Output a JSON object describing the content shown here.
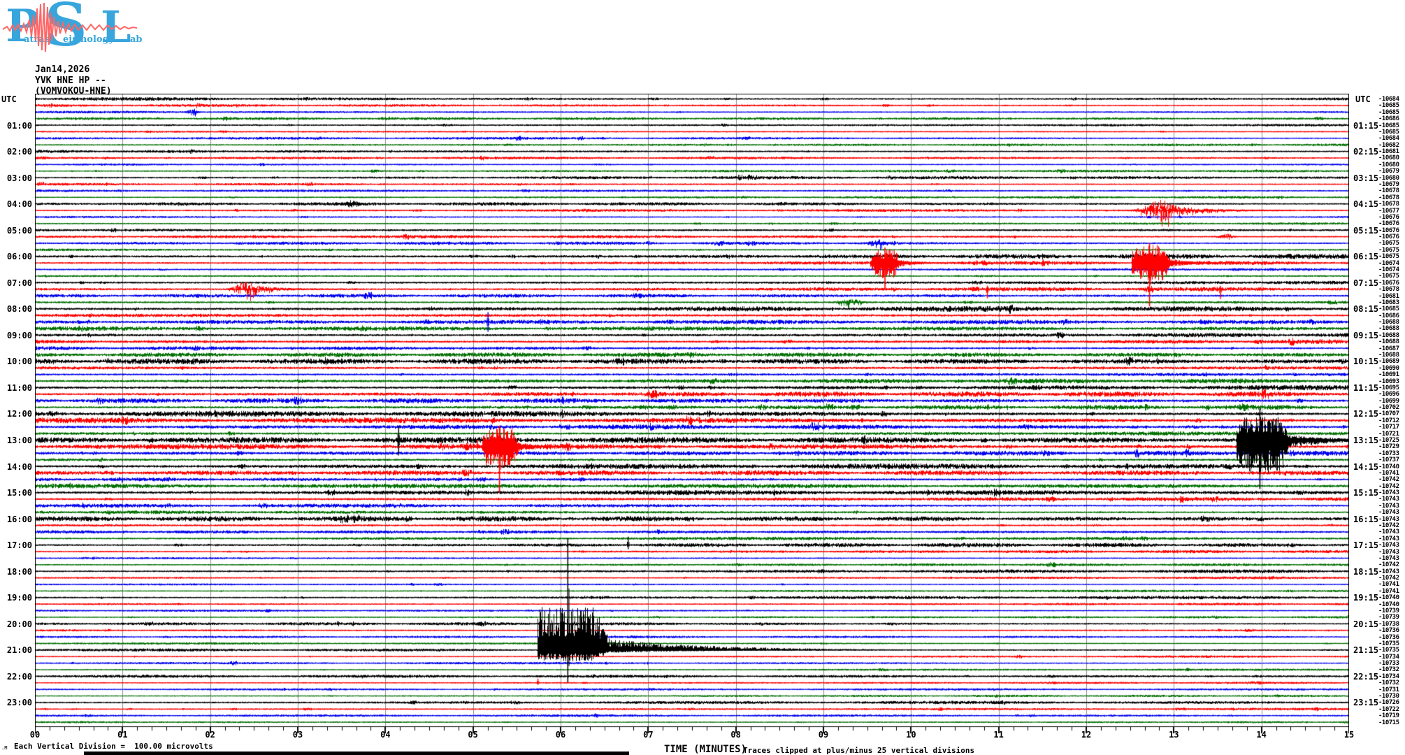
{
  "logo": {
    "cap1": "P",
    "word1": "atras",
    "cap2": "S",
    "word2": "eismology",
    "cap3": "L",
    "word3": "ab",
    "letter_color": "#38a6dc",
    "wave_color": "#ff6666"
  },
  "header": {
    "date": "Jan14,2026",
    "station": "YVK HNE HP --",
    "location": "(VOMVOKOU-HNE)"
  },
  "axes": {
    "left_label": "UTC",
    "right_label": "UTC"
  },
  "footer": {
    "corner_mark": ".M",
    "scale_note": "Each Vertical Division =  100.00 microvolts",
    "clip_note": "Traces clipped at plus/minus 25 vertical divisions"
  },
  "chart_data": {
    "type": "helicorder",
    "title": "Jan14,2026 YVK HNE HP -- (VOMVOKOU-HNE)",
    "xlabel": "TIME (MINUTES)",
    "minutes_per_line": 15,
    "lines": 96,
    "x_range": [
      0,
      15
    ],
    "x_ticks": [
      "00",
      "01",
      "02",
      "03",
      "04",
      "05",
      "06",
      "07",
      "08",
      "09",
      "10",
      "11",
      "12",
      "13",
      "14",
      "15"
    ],
    "left_times": [
      "01:00",
      "02:00",
      "03:00",
      "04:00",
      "05:00",
      "06:00",
      "07:00",
      "08:00",
      "09:00",
      "10:00",
      "11:00",
      "12:00",
      "13:00",
      "14:00",
      "15:00",
      "16:00",
      "17:00",
      "18:00",
      "19:00",
      "20:00",
      "21:00",
      "22:00",
      "23:00"
    ],
    "right_times": [
      "01:15",
      "02:15",
      "03:15",
      "04:15",
      "05:15",
      "06:15",
      "07:15",
      "08:15",
      "09:15",
      "10:15",
      "11:15",
      "12:15",
      "13:15",
      "14:15",
      "15:15",
      "16:15",
      "17:15",
      "18:15",
      "19:15",
      "20:15",
      "21:15",
      "22:15",
      "23:15"
    ],
    "trace_color_cycle": [
      "#000000",
      "#ff0000",
      "#0000ee",
      "#007000"
    ],
    "grid_color": "#8f8f8f",
    "row_end_values": [
      -10684,
      -10685,
      -10685,
      -10686,
      -10685,
      -10685,
      -10684,
      -10682,
      -10681,
      -10680,
      -10680,
      -10679,
      -10680,
      -10679,
      -10678,
      -10678,
      -10678,
      -10677,
      -10676,
      -10676,
      -10676,
      -10676,
      -10675,
      -10675,
      -10675,
      -10674,
      -10674,
      -10675,
      -10676,
      -10678,
      -10681,
      -10683,
      -10685,
      -10686,
      -10688,
      -10688,
      -10688,
      -10688,
      -10687,
      -10688,
      -10689,
      -10690,
      -10691,
      -10693,
      -10695,
      -10696,
      -10699,
      -10702,
      -10707,
      -10712,
      -10717,
      -10721,
      -10725,
      -10729,
      -10733,
      -10737,
      -10740,
      -10741,
      -10742,
      -10742,
      -10743,
      -10743,
      -10743,
      -10743,
      -10743,
      -10742,
      -10743,
      -10743,
      -10743,
      -10743,
      -10743,
      -10742,
      -10743,
      -10742,
      -10741,
      -10741,
      -10740,
      -10740,
      -10739,
      -10739,
      -10738,
      -10736,
      -10736,
      -10735,
      -10735,
      -10734,
      -10733,
      -10732,
      -10734,
      -10732,
      -10731,
      -10730,
      -10726,
      -10722,
      -10719,
      -10715
    ],
    "noise_amp": [
      2.0,
      1.6,
      1.5,
      1.5,
      1.8,
      1.5,
      1.4,
      1.3,
      1.6,
      1.4,
      1.3,
      1.3,
      1.6,
      1.4,
      1.3,
      1.3,
      1.7,
      1.5,
      1.4,
      1.4,
      2.4,
      1.9,
      1.9,
      1.9,
      2.8,
      2.3,
      2.1,
      2.1,
      2.6,
      2.5,
      2.1,
      2.3,
      3.2,
      3.1,
      2.5,
      2.5,
      3.0,
      2.9,
      2.5,
      2.7,
      3.2,
      3.3,
      2.7,
      2.9,
      3.3,
      3.3,
      2.9,
      2.9,
      3.5,
      3.5,
      2.9,
      2.9,
      3.7,
      3.5,
      2.9,
      2.9,
      3.3,
      3.1,
      2.7,
      2.7,
      2.9,
      2.7,
      2.3,
      2.3,
      2.9,
      2.3,
      1.9,
      1.9,
      2.3,
      1.7,
      1.5,
      1.5,
      1.9,
      1.5,
      1.3,
      1.3,
      1.7,
      1.4,
      1.2,
      1.2,
      1.5,
      1.3,
      1.2,
      1.1,
      1.5,
      1.3,
      1.2,
      1.1,
      1.4,
      1.2,
      1.1,
      1.1,
      1.6,
      1.3,
      1.2,
      1.2
    ],
    "events": [
      {
        "line": 2,
        "minute": 1.8,
        "type": "burst",
        "amp": 5,
        "w": 0.06
      },
      {
        "line": 16,
        "minute": 3.6,
        "type": "burst",
        "amp": 5,
        "w": 0.12
      },
      {
        "line": 17,
        "minute": 12.85,
        "type": "burst",
        "amp": 15,
        "w": 0.2,
        "coda": 0.45,
        "tail_dn": 16
      },
      {
        "line": 21,
        "minute": 13.6,
        "type": "burst",
        "amp": 4,
        "w": 0.08
      },
      {
        "line": 22,
        "minute": 9.62,
        "type": "burst",
        "amp": 6,
        "w": 0.1
      },
      {
        "line": 25,
        "minute": 9.7,
        "type": "quake",
        "amp_up": 20,
        "amp_dn": 22,
        "w": 0.1,
        "coda": 0.3,
        "line_up": 22,
        "line_dn": 36
      },
      {
        "line": 25,
        "minute": 12.72,
        "type": "quake",
        "amp_up": 26,
        "amp_dn": 26,
        "w": 0.14,
        "coda": 0.35,
        "line_up": 28,
        "line_dn": 62
      },
      {
        "line": 29,
        "minute": 2.42,
        "type": "burst",
        "amp": 11,
        "w": 0.15,
        "coda": 0.35
      },
      {
        "line": 29,
        "minute": 10.87,
        "type": "spike",
        "up": 5,
        "dn": 13
      },
      {
        "line": 29,
        "minute": 13.53,
        "type": "spike",
        "up": 5,
        "dn": 14
      },
      {
        "line": 31,
        "minute": 9.3,
        "type": "burst",
        "amp": 5,
        "w": 0.15
      },
      {
        "line": 34,
        "minute": 5.17,
        "type": "spike",
        "up": 14,
        "dn": 14
      },
      {
        "line": 52,
        "minute": 4.15,
        "type": "spike",
        "up": 20,
        "dn": 22
      },
      {
        "line": 52,
        "minute": 13.98,
        "type": "quake",
        "amp_up": 34,
        "amp_dn": 50,
        "w": 0.2,
        "coda": 0.55,
        "line_up": 45,
        "line_dn": 70
      },
      {
        "line": 53,
        "minute": 5.05,
        "type": "spike",
        "up": 10,
        "dn": 4
      },
      {
        "line": 53,
        "minute": 5.3,
        "type": "quake",
        "amp_up": 28,
        "amp_dn": 30,
        "w": 0.13,
        "coda": 0.3,
        "line_up": 30,
        "line_dn": 66
      },
      {
        "line": 68,
        "minute": 6.77,
        "type": "spike",
        "up": 12,
        "dn": 6
      },
      {
        "line": 84,
        "minute": 6.08,
        "type": "quake",
        "amp_up": 62,
        "amp_dn": 16,
        "w": 0.28,
        "coda": 1.2,
        "line_up": 160,
        "line_dn": 46
      },
      {
        "line": 89,
        "minute": 5.74,
        "type": "spike",
        "up": 6,
        "dn": 3
      }
    ]
  }
}
